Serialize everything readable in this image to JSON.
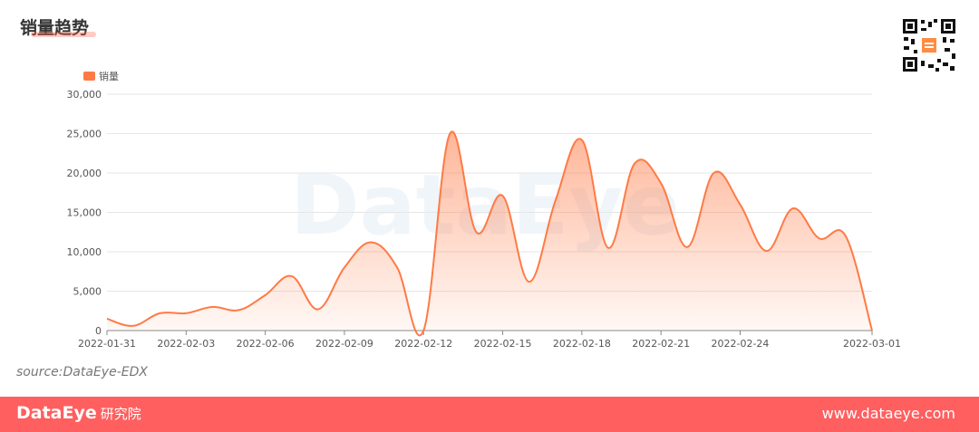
{
  "header": {
    "title": "销量趋势",
    "qr_icon": "qr-code-icon"
  },
  "colors": {
    "accent": "#ff7a45",
    "footer_bg": "#ff5f5f",
    "grid": "#e6e6e6",
    "axis_text": "#555555"
  },
  "chart_data": {
    "type": "area",
    "legend": [
      "销量"
    ],
    "legend_position": "top-left",
    "grid": true,
    "ylim": [
      0,
      30000
    ],
    "yticks": [
      "0",
      "5,000",
      "10,000",
      "15,000",
      "20,000",
      "25,000",
      "30,000"
    ],
    "xticks": [
      "2022-01-31",
      "2022-02-03",
      "2022-02-06",
      "2022-02-09",
      "2022-02-12",
      "2022-02-15",
      "2022-02-18",
      "2022-02-21",
      "2022-02-24",
      "2022-03-01"
    ],
    "series": [
      {
        "name": "销量",
        "x": [
          "2022-01-31",
          "2022-02-01",
          "2022-02-02",
          "2022-02-03",
          "2022-02-04",
          "2022-02-05",
          "2022-02-06",
          "2022-02-07",
          "2022-02-08",
          "2022-02-09",
          "2022-02-10",
          "2022-02-11",
          "2022-02-12",
          "2022-02-13",
          "2022-02-14",
          "2022-02-15",
          "2022-02-16",
          "2022-02-17",
          "2022-02-18",
          "2022-02-19",
          "2022-02-20",
          "2022-02-21",
          "2022-02-22",
          "2022-02-23",
          "2022-02-24",
          "2022-02-25",
          "2022-02-26",
          "2022-02-27",
          "2022-02-28",
          "2022-03-01"
        ],
        "values": [
          1500,
          600,
          2200,
          2200,
          3000,
          2600,
          4500,
          6900,
          2700,
          8000,
          11200,
          8000,
          0,
          25000,
          12500,
          17100,
          6200,
          16500,
          24200,
          10500,
          21200,
          18700,
          10600,
          20000,
          16000,
          10100,
          15500,
          11700,
          12000,
          0
        ]
      }
    ]
  },
  "watermark": "DataEye",
  "source": "source:DataEye-EDX",
  "footer": {
    "brand_en": "DataEye",
    "brand_cn": "研究院",
    "url": "www.dataeye.com"
  }
}
